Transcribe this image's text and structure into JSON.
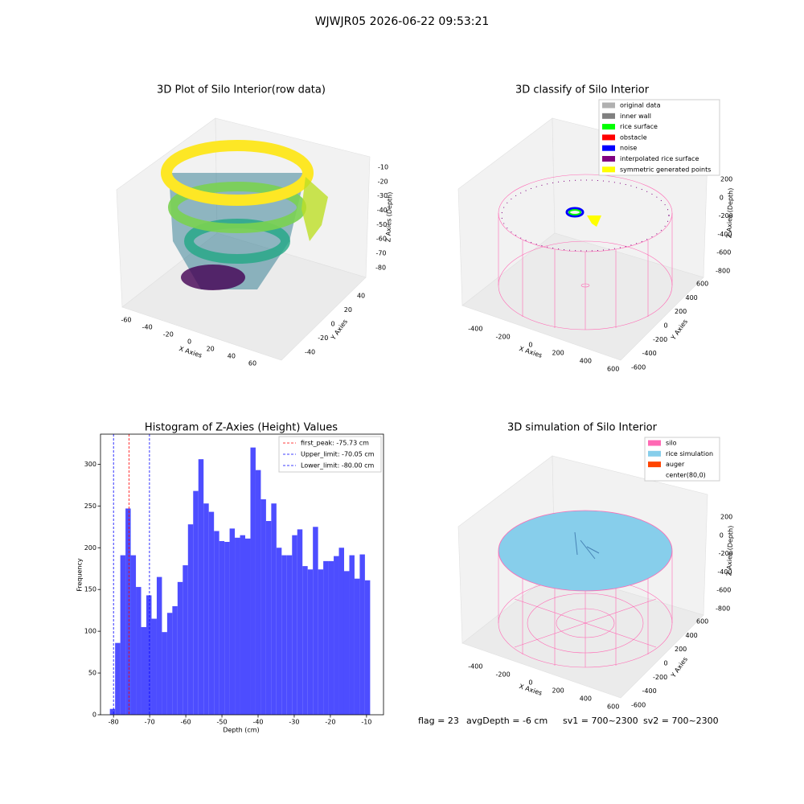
{
  "title": "WJWJR05 2026-06-22 09:53:21",
  "footer": [
    "flag = 23",
    "avgDepth = -6 cm",
    "sv1 = 700~2300",
    "sv2 = 700~2300"
  ],
  "chart_data": [
    {
      "type": "scatter3d",
      "title": "3D Plot of Silo Interior(row data)",
      "xlabel": "X Axies",
      "ylabel": "Y Axies",
      "zlabel": "Z Axies (Depth)",
      "xlim": [
        -70,
        70
      ],
      "xticks": [
        -60,
        -40,
        -20,
        0,
        20,
        40,
        60
      ],
      "ylim": [
        -50,
        50
      ],
      "yticks": [
        -40,
        -20,
        0,
        20,
        40
      ],
      "zlim": [
        -85,
        -5
      ],
      "zticks": [
        -80,
        -70,
        -60,
        -50,
        -40,
        -30,
        -20,
        -10
      ]
    },
    {
      "type": "scatter3d",
      "title": "3D classify of Silo Interior",
      "xlabel": "X Axies",
      "ylabel": "Y Axies",
      "zlabel": "Z Axies (Depth)",
      "xlim": [
        -500,
        700
      ],
      "xticks": [
        -400,
        -200,
        0,
        200,
        400,
        600
      ],
      "ylim": [
        -700,
        700
      ],
      "yticks": [
        -600,
        -400,
        -200,
        0,
        200,
        400,
        600
      ],
      "zlim": [
        -850,
        250
      ],
      "zticks": [
        -800,
        -600,
        -400,
        -200,
        0,
        200
      ],
      "legend": [
        {
          "name": "original data",
          "color": "#b0b0b0"
        },
        {
          "name": "inner wall",
          "color": "#808080"
        },
        {
          "name": "rice surface",
          "color": "#00ff00"
        },
        {
          "name": "obstacle",
          "color": "#ff0000"
        },
        {
          "name": "noise",
          "color": "#0000ff"
        },
        {
          "name": "interpolated rice surface",
          "color": "#800080"
        },
        {
          "name": "symmetric generated points",
          "color": "#ffff00"
        }
      ]
    },
    {
      "type": "histogram",
      "title": "Histogram of Z-Axies (Height) Values",
      "xlabel": "Depth (cm)",
      "ylabel": "Frequency",
      "color": "#4d4dff",
      "bins": [
        -81,
        -79.56,
        -78.12,
        -76.68,
        -75.24,
        -73.8,
        -72.36,
        -70.92,
        -69.48,
        -68.04,
        -66.6,
        -65.16,
        -63.72,
        -62.28,
        -60.84,
        -59.4,
        -57.96,
        -56.52,
        -55.08,
        -53.64,
        -52.2,
        -50.76,
        -49.32,
        -47.88,
        -46.44,
        -45,
        -43.56,
        -42.12,
        -40.68,
        -39.24,
        -37.8,
        -36.36,
        -34.92,
        -33.48,
        -32.04,
        -30.6,
        -29.16,
        -27.72,
        -26.28,
        -24.84,
        -23.4,
        -21.96,
        -20.52,
        -19.08,
        -17.64,
        -16.2,
        -14.76,
        -13.32,
        -11.88,
        -10.44,
        -9
      ],
      "values": [
        7,
        86,
        191,
        247,
        191,
        153,
        105,
        143,
        115,
        165,
        99,
        122,
        130,
        159,
        179,
        228,
        268,
        306,
        253,
        243,
        220,
        208,
        207,
        223,
        212,
        215,
        211,
        320,
        293,
        258,
        232,
        253,
        200,
        191,
        191,
        215,
        222,
        178,
        174,
        225,
        174,
        184,
        184,
        190,
        200,
        172,
        191,
        163,
        192,
        161
      ],
      "xlim": [
        -83.6,
        -5.3
      ],
      "xticks": [
        -80,
        -70,
        -60,
        -50,
        -40,
        -30,
        -20,
        -10
      ],
      "ylim": [
        0,
        336
      ],
      "yticks": [
        0,
        50,
        100,
        150,
        200,
        250,
        300
      ],
      "lines": [
        {
          "name": "first_peak: -75.73 cm",
          "value": -75.73,
          "color": "#ff0000"
        },
        {
          "name": "Upper_limit: -70.05 cm",
          "value": -70.05,
          "color": "#0000ff"
        },
        {
          "name": "Lower_limit: -80.00 cm",
          "value": -80.0,
          "color": "#0000ff"
        }
      ]
    },
    {
      "type": "scatter3d",
      "title": "3D simulation of Silo Interior",
      "xlabel": "X Axies",
      "ylabel": "Y Axies",
      "zlabel": "Z Axies (Depth)",
      "xlim": [
        -500,
        700
      ],
      "xticks": [
        -400,
        -200,
        0,
        200,
        400,
        600
      ],
      "ylim": [
        -700,
        700
      ],
      "yticks": [
        -600,
        -400,
        -200,
        0,
        200,
        400,
        600
      ],
      "zlim": [
        -850,
        250
      ],
      "zticks": [
        -800,
        -600,
        -400,
        -200,
        0,
        200
      ],
      "legend": [
        {
          "name": "silo",
          "color": "#ff69b4"
        },
        {
          "name": "rice simulation",
          "color": "#87ceeb"
        },
        {
          "name": "auger",
          "color": "#ff4500"
        },
        {
          "name": "center(80,0)"
        }
      ]
    }
  ]
}
